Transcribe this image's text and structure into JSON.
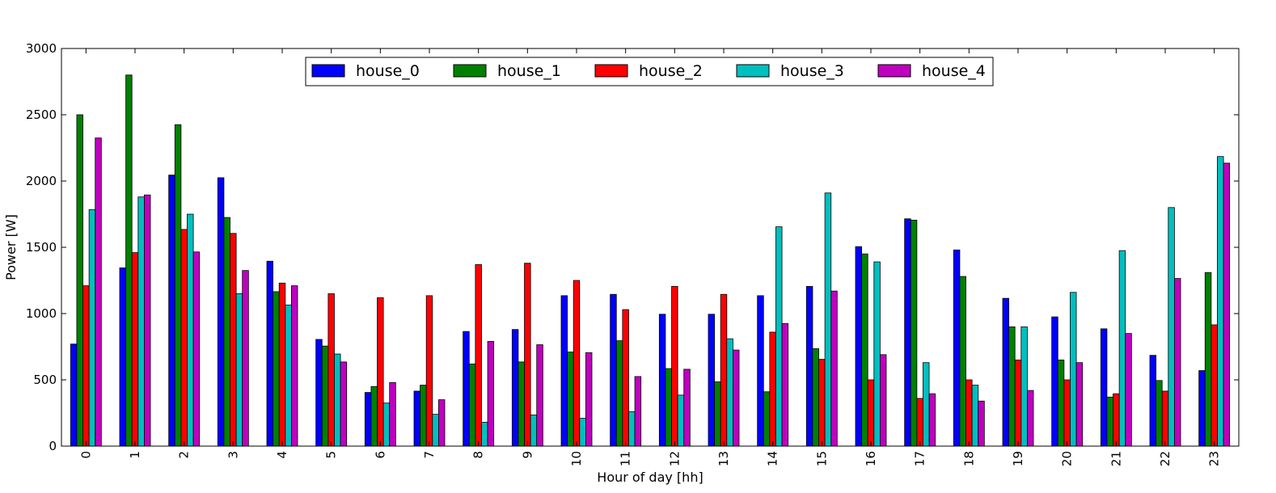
{
  "chart_data": {
    "type": "bar",
    "title": "",
    "xlabel": "Hour of day [hh]",
    "ylabel": "Power [W]",
    "ylim": [
      0,
      3000
    ],
    "yticks": [
      0,
      500,
      1000,
      1500,
      2000,
      2500,
      3000
    ],
    "grid": false,
    "legend_position": "top-center",
    "categories": [
      "0",
      "1",
      "2",
      "3",
      "4",
      "5",
      "6",
      "7",
      "8",
      "9",
      "10",
      "11",
      "12",
      "13",
      "14",
      "15",
      "16",
      "17",
      "18",
      "19",
      "20",
      "21",
      "22",
      "23"
    ],
    "series": [
      {
        "name": "house_0",
        "color": "#0000ff",
        "values": [
          770,
          1345,
          2045,
          2025,
          1395,
          805,
          405,
          415,
          865,
          880,
          1135,
          1145,
          995,
          995,
          1135,
          1205,
          1505,
          1715,
          1480,
          1115,
          975,
          885,
          685,
          570
        ]
      },
      {
        "name": "house_1",
        "color": "#008000",
        "values": [
          2500,
          2800,
          2425,
          1725,
          1165,
          755,
          450,
          460,
          620,
          635,
          710,
          795,
          585,
          485,
          410,
          735,
          1450,
          1705,
          1280,
          900,
          650,
          370,
          495,
          1310
        ]
      },
      {
        "name": "house_2",
        "color": "#ff0000",
        "values": [
          1210,
          1460,
          1635,
          1605,
          1230,
          1150,
          1120,
          1135,
          1370,
          1380,
          1250,
          1030,
          1205,
          1145,
          860,
          655,
          500,
          360,
          500,
          650,
          500,
          395,
          415,
          915
        ]
      },
      {
        "name": "house_3",
        "color": "#00bfbf",
        "values": [
          1785,
          1880,
          1750,
          1150,
          1065,
          695,
          325,
          240,
          180,
          235,
          210,
          260,
          385,
          810,
          1655,
          1910,
          1390,
          630,
          460,
          900,
          1160,
          1475,
          1800,
          2185
        ]
      },
      {
        "name": "house_4",
        "color": "#bf00bf",
        "values": [
          2325,
          1895,
          1465,
          1325,
          1210,
          635,
          480,
          350,
          790,
          765,
          705,
          525,
          580,
          725,
          925,
          1170,
          690,
          395,
          340,
          420,
          630,
          850,
          1265,
          2135
        ]
      }
    ]
  }
}
